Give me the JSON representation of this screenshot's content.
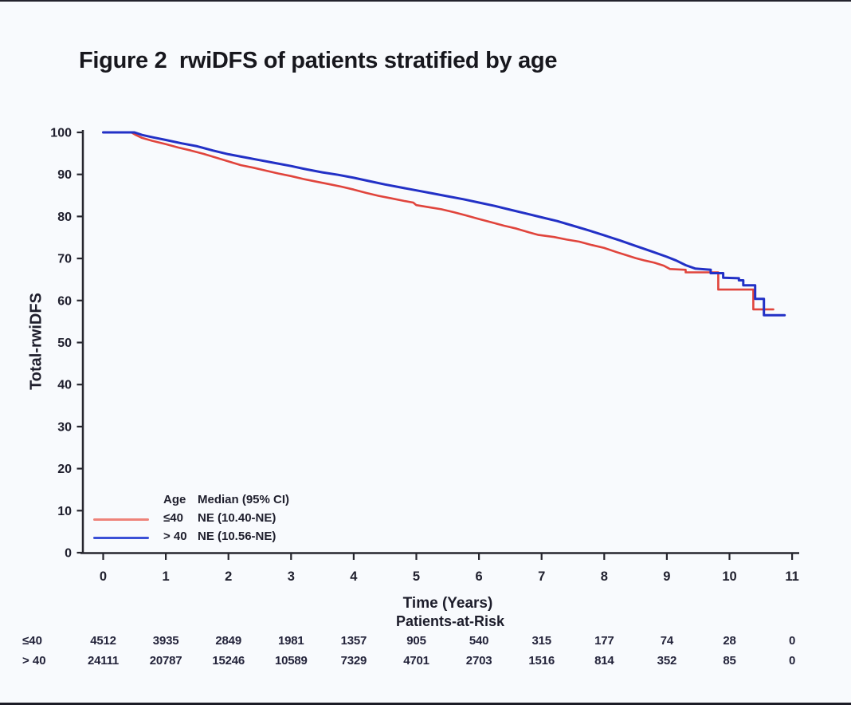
{
  "figure": {
    "title": "Figure 2  rwiDFS of patients stratified by age",
    "background": "#f8fafd",
    "edge_color": "#23232d"
  },
  "chart_data": {
    "type": "line",
    "subtype": "kaplan-meier-step",
    "title": "Figure 2  rwiDFS of patients stratified by age",
    "xlabel": "Time (Years)",
    "ylabel": "Total-rwiDFS",
    "xlim": [
      0,
      11
    ],
    "ylim": [
      0,
      100
    ],
    "grid": false,
    "x_ticks": [
      0,
      1,
      2,
      3,
      4,
      5,
      6,
      7,
      8,
      9,
      10,
      11
    ],
    "y_ticks": [
      0,
      10,
      20,
      30,
      40,
      50,
      60,
      70,
      80,
      90,
      100
    ],
    "legend": {
      "position": "lower-left-inside",
      "header_age": "Age",
      "header_median": "Median (95% CI)"
    },
    "series": [
      {
        "name": "≤40",
        "median": "NE (10.40-NE)",
        "color": "#e0443c",
        "swatch_color": "#ee837a",
        "points": [
          [
            0,
            100
          ],
          [
            0.45,
            100
          ],
          [
            0.52,
            99.4
          ],
          [
            0.62,
            98.7
          ],
          [
            0.78,
            98.0
          ],
          [
            1.0,
            97.2
          ],
          [
            1.2,
            96.4
          ],
          [
            1.4,
            95.7
          ],
          [
            1.6,
            94.9
          ],
          [
            1.8,
            94.0
          ],
          [
            2.0,
            93.1
          ],
          [
            2.2,
            92.2
          ],
          [
            2.4,
            91.6
          ],
          [
            2.6,
            90.9
          ],
          [
            2.8,
            90.2
          ],
          [
            3.0,
            89.6
          ],
          [
            3.2,
            88.9
          ],
          [
            3.4,
            88.3
          ],
          [
            3.6,
            87.7
          ],
          [
            3.8,
            87.1
          ],
          [
            4.0,
            86.4
          ],
          [
            4.2,
            85.6
          ],
          [
            4.4,
            84.9
          ],
          [
            4.6,
            84.3
          ],
          [
            4.8,
            83.7
          ],
          [
            4.95,
            83.3
          ],
          [
            5.0,
            82.7
          ],
          [
            5.2,
            82.2
          ],
          [
            5.4,
            81.7
          ],
          [
            5.6,
            81.0
          ],
          [
            5.8,
            80.2
          ],
          [
            6.0,
            79.4
          ],
          [
            6.2,
            78.6
          ],
          [
            6.4,
            77.8
          ],
          [
            6.6,
            77.1
          ],
          [
            6.8,
            76.2
          ],
          [
            6.95,
            75.6
          ],
          [
            7.2,
            75.1
          ],
          [
            7.4,
            74.5
          ],
          [
            7.6,
            74.0
          ],
          [
            7.8,
            73.2
          ],
          [
            8.0,
            72.5
          ],
          [
            8.2,
            71.5
          ],
          [
            8.35,
            70.8
          ],
          [
            8.5,
            70.1
          ],
          [
            8.65,
            69.5
          ],
          [
            8.8,
            69.0
          ],
          [
            8.95,
            68.3
          ],
          [
            9.05,
            67.5
          ],
          [
            9.3,
            67.3
          ],
          [
            9.3,
            66.7
          ],
          [
            9.82,
            66.7
          ],
          [
            9.82,
            62.6
          ],
          [
            10.38,
            62.6
          ],
          [
            10.38,
            57.9
          ],
          [
            10.7,
            57.9
          ]
        ]
      },
      {
        "name": "> 40",
        "median": "NE (10.56-NE)",
        "color": "#2230c6",
        "swatch_color": "#3a50d6",
        "points": [
          [
            0,
            100
          ],
          [
            0.5,
            100
          ],
          [
            0.62,
            99.4
          ],
          [
            0.8,
            98.8
          ],
          [
            1.0,
            98.2
          ],
          [
            1.25,
            97.4
          ],
          [
            1.5,
            96.7
          ],
          [
            1.75,
            95.7
          ],
          [
            2.0,
            94.8
          ],
          [
            2.25,
            94.1
          ],
          [
            2.5,
            93.4
          ],
          [
            2.75,
            92.7
          ],
          [
            3.0,
            92.0
          ],
          [
            3.25,
            91.2
          ],
          [
            3.5,
            90.5
          ],
          [
            3.75,
            89.9
          ],
          [
            4.0,
            89.2
          ],
          [
            4.25,
            88.4
          ],
          [
            4.5,
            87.6
          ],
          [
            4.75,
            86.9
          ],
          [
            5.0,
            86.2
          ],
          [
            5.25,
            85.5
          ],
          [
            5.5,
            84.8
          ],
          [
            5.75,
            84.1
          ],
          [
            6.0,
            83.3
          ],
          [
            6.25,
            82.5
          ],
          [
            6.5,
            81.6
          ],
          [
            6.75,
            80.7
          ],
          [
            7.0,
            79.8
          ],
          [
            7.25,
            78.9
          ],
          [
            7.5,
            77.8
          ],
          [
            7.75,
            76.7
          ],
          [
            8.0,
            75.5
          ],
          [
            8.25,
            74.3
          ],
          [
            8.5,
            73.0
          ],
          [
            8.75,
            71.7
          ],
          [
            9.0,
            70.4
          ],
          [
            9.15,
            69.5
          ],
          [
            9.3,
            68.4
          ],
          [
            9.45,
            67.6
          ],
          [
            9.7,
            67.3
          ],
          [
            9.7,
            66.5
          ],
          [
            9.9,
            66.5
          ],
          [
            9.9,
            65.4
          ],
          [
            10.15,
            65.3
          ],
          [
            10.15,
            64.8
          ],
          [
            10.22,
            64.8
          ],
          [
            10.22,
            63.6
          ],
          [
            10.41,
            63.6
          ],
          [
            10.41,
            60.4
          ],
          [
            10.55,
            60.4
          ],
          [
            10.55,
            56.5
          ],
          [
            10.88,
            56.5
          ]
        ]
      }
    ],
    "axis_color": "#26262e"
  },
  "risk_table": {
    "title": "Patients-at-Risk",
    "time_points": [
      0,
      1,
      2,
      3,
      4,
      5,
      6,
      7,
      8,
      9,
      10,
      11
    ],
    "rows": [
      {
        "label": "≤40",
        "values": [
          "4512",
          "3935",
          "2849",
          "1981",
          "1357",
          "905",
          "540",
          "315",
          "177",
          "74",
          "28",
          "0"
        ]
      },
      {
        "label": "> 40",
        "values": [
          "24111",
          "20787",
          "15246",
          "10589",
          "7329",
          "4701",
          "2703",
          "1516",
          "814",
          "352",
          "85",
          "0"
        ]
      }
    ]
  }
}
